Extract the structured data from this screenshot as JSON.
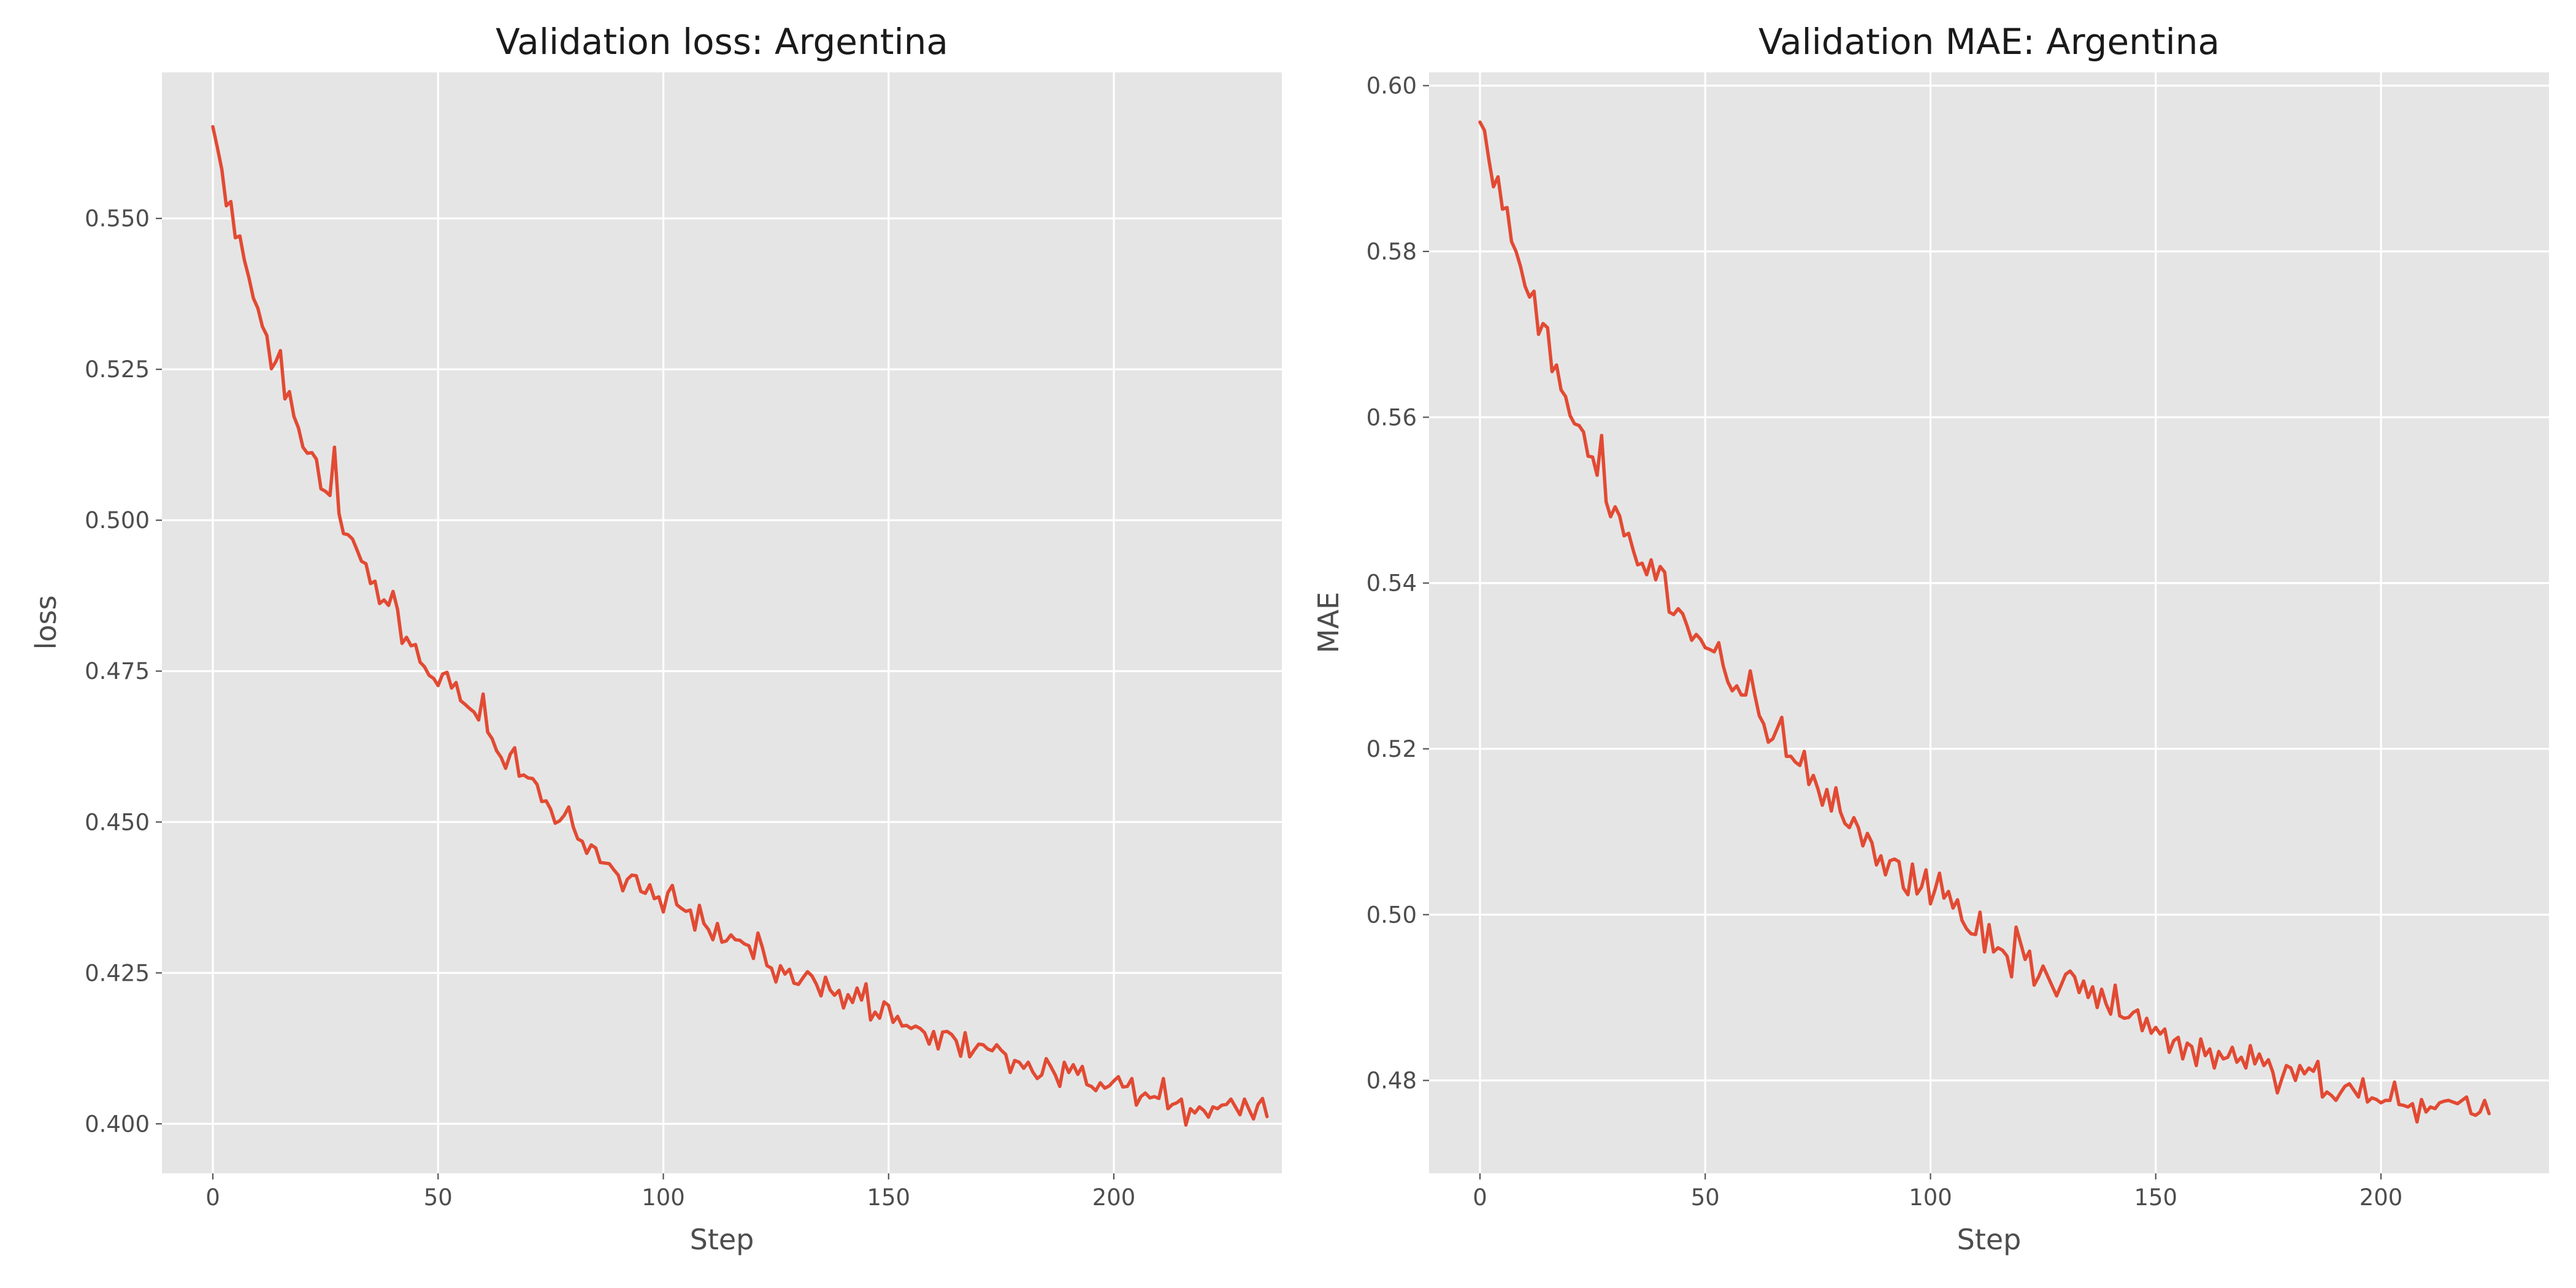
{
  "colors": {
    "panel_background": "#e5e5e5",
    "grid": "#ffffff",
    "series": "#e24a33"
  },
  "chart_data": [
    {
      "type": "line",
      "title": "Validation loss: Argentina",
      "xlabel": "Step",
      "ylabel": "loss",
      "xlim": [
        -11.3,
        237.3
      ],
      "ylim": [
        0.3918,
        0.5742
      ],
      "xticks": [
        0,
        50,
        100,
        150,
        200
      ],
      "xtick_labels": [
        "0",
        "50",
        "100",
        "150",
        "200"
      ],
      "yticks": [
        0.4,
        0.425,
        0.45,
        0.475,
        0.5,
        0.525,
        0.55
      ],
      "ytick_labels": [
        "0.400",
        "0.425",
        "0.450",
        "0.475",
        "0.500",
        "0.525",
        "0.550"
      ],
      "grid": true,
      "series": [
        {
          "x_start": 0,
          "x_step": 1,
          "values": [
            0.5652,
            0.5618,
            0.5581,
            0.5521,
            0.5528,
            0.5468,
            0.5471,
            0.5431,
            0.5402,
            0.5368,
            0.5351,
            0.5321,
            0.5306,
            0.5251,
            0.5263,
            0.5281,
            0.5201,
            0.5213,
            0.5172,
            0.5153,
            0.5121,
            0.5111,
            0.5112,
            0.5101,
            0.5052,
            0.5048,
            0.5041,
            0.5121,
            0.5011,
            0.4978,
            0.4976,
            0.4969,
            0.4951,
            0.4932,
            0.4928,
            0.4895,
            0.4899,
            0.4862,
            0.4868,
            0.4859,
            0.4882,
            0.4852,
            0.4796,
            0.4806,
            0.4792,
            0.4794,
            0.4765,
            0.4757,
            0.4743,
            0.4738,
            0.4726,
            0.4745,
            0.4748,
            0.4722,
            0.4731,
            0.4701,
            0.4695,
            0.4688,
            0.4682,
            0.4669,
            0.4712,
            0.4649,
            0.4638,
            0.4618,
            0.4607,
            0.4589,
            0.4612,
            0.4623,
            0.4576,
            0.4578,
            0.4573,
            0.4572,
            0.4562,
            0.4534,
            0.4535,
            0.4521,
            0.4498,
            0.4502,
            0.4511,
            0.4525,
            0.4492,
            0.4472,
            0.4468,
            0.4448,
            0.4462,
            0.4457,
            0.4433,
            0.4432,
            0.4431,
            0.4421,
            0.4412,
            0.4386,
            0.4405,
            0.4412,
            0.4411,
            0.4385,
            0.4382,
            0.4396,
            0.4373,
            0.4376,
            0.4351,
            0.4383,
            0.4395,
            0.4363,
            0.4357,
            0.4352,
            0.4354,
            0.4321,
            0.4362,
            0.4332,
            0.4322,
            0.4305,
            0.4332,
            0.4301,
            0.4303,
            0.4313,
            0.4305,
            0.4304,
            0.4298,
            0.4295,
            0.4274,
            0.4316,
            0.4292,
            0.4262,
            0.4258,
            0.4235,
            0.4262,
            0.4248,
            0.4256,
            0.4233,
            0.4231,
            0.4242,
            0.4252,
            0.4245,
            0.4231,
            0.4212,
            0.4243,
            0.4222,
            0.4213,
            0.4221,
            0.4192,
            0.4214,
            0.4201,
            0.4225,
            0.4205,
            0.4232,
            0.4172,
            0.4185,
            0.4175,
            0.4202,
            0.4196,
            0.4168,
            0.4178,
            0.4162,
            0.4163,
            0.4158,
            0.4162,
            0.4158,
            0.4151,
            0.4132,
            0.4153,
            0.4124,
            0.4152,
            0.4153,
            0.4148,
            0.4138,
            0.4112,
            0.4151,
            0.4111,
            0.4122,
            0.4132,
            0.4131,
            0.4124,
            0.4121,
            0.4131,
            0.4122,
            0.4115,
            0.4085,
            0.4105,
            0.4102,
            0.4092,
            0.4102,
            0.4086,
            0.4075,
            0.4081,
            0.4108,
            0.4095,
            0.4081,
            0.4062,
            0.4102,
            0.4085,
            0.4098,
            0.4082,
            0.4095,
            0.4065,
            0.4062,
            0.4055,
            0.4068,
            0.4059,
            0.4063,
            0.4071,
            0.4078,
            0.4061,
            0.4062,
            0.4075,
            0.4031,
            0.4045,
            0.4051,
            0.4043,
            0.4045,
            0.4042,
            0.4075,
            0.4025,
            0.4032,
            0.4035,
            0.4041,
            0.3998,
            0.4025,
            0.4018,
            0.4028,
            0.4022,
            0.4011,
            0.4028,
            0.4025,
            0.4031,
            0.4032,
            0.4041,
            0.4028,
            0.4015,
            0.4041,
            0.4024,
            0.4008,
            0.4032,
            0.4042,
            0.4012
          ]
        }
      ]
    },
    {
      "type": "line",
      "title": "Validation MAE: Argentina",
      "xlabel": "Step",
      "ylabel": "MAE",
      "xlim": [
        -11.3,
        237.3
      ],
      "ylim": [
        0.4688,
        0.6016
      ],
      "xticks": [
        0,
        50,
        100,
        150,
        200
      ],
      "xtick_labels": [
        "0",
        "50",
        "100",
        "150",
        "200"
      ],
      "yticks": [
        0.48,
        0.5,
        0.52,
        0.54,
        0.56,
        0.58,
        0.6
      ],
      "ytick_labels": [
        "0.48",
        "0.50",
        "0.52",
        "0.54",
        "0.56",
        "0.58",
        "0.60"
      ],
      "grid": true,
      "series": [
        {
          "x_start": 0,
          "x_step": 1,
          "values": [
            0.5956,
            0.5946,
            0.591,
            0.5878,
            0.589,
            0.5851,
            0.5853,
            0.5812,
            0.58,
            0.5782,
            0.5758,
            0.5745,
            0.5752,
            0.57,
            0.5713,
            0.5708,
            0.5655,
            0.5663,
            0.5633,
            0.5625,
            0.5602,
            0.5592,
            0.559,
            0.5582,
            0.5553,
            0.5552,
            0.553,
            0.5578,
            0.5498,
            0.548,
            0.5492,
            0.5481,
            0.5457,
            0.546,
            0.544,
            0.5422,
            0.5424,
            0.541,
            0.5428,
            0.5404,
            0.542,
            0.5413,
            0.5365,
            0.5362,
            0.5369,
            0.5363,
            0.5348,
            0.5331,
            0.5338,
            0.5332,
            0.5322,
            0.532,
            0.5317,
            0.5328,
            0.53,
            0.5281,
            0.527,
            0.5276,
            0.5265,
            0.5265,
            0.5294,
            0.5265,
            0.524,
            0.523,
            0.5208,
            0.5212,
            0.5225,
            0.5238,
            0.5191,
            0.5191,
            0.5184,
            0.518,
            0.5197,
            0.5157,
            0.5168,
            0.5152,
            0.5132,
            0.5151,
            0.5125,
            0.5153,
            0.5124,
            0.511,
            0.5105,
            0.5117,
            0.5105,
            0.5083,
            0.5098,
            0.5087,
            0.506,
            0.5071,
            0.5048,
            0.5065,
            0.5067,
            0.5064,
            0.5032,
            0.5024,
            0.5061,
            0.5025,
            0.5033,
            0.5054,
            0.5013,
            0.503,
            0.505,
            0.502,
            0.5028,
            0.5008,
            0.5018,
            0.4993,
            0.4983,
            0.4977,
            0.4976,
            0.5003,
            0.4955,
            0.4988,
            0.4955,
            0.496,
            0.4957,
            0.495,
            0.4925,
            0.4985,
            0.4966,
            0.4946,
            0.4956,
            0.4915,
            0.4925,
            0.4938,
            0.4926,
            0.4914,
            0.4902,
            0.4915,
            0.4928,
            0.4932,
            0.4925,
            0.4906,
            0.492,
            0.49,
            0.4913,
            0.4888,
            0.491,
            0.4892,
            0.488,
            0.4915,
            0.4878,
            0.4875,
            0.4876,
            0.4882,
            0.4885,
            0.486,
            0.4875,
            0.4857,
            0.4864,
            0.4856,
            0.4862,
            0.4834,
            0.4848,
            0.4852,
            0.4826,
            0.4845,
            0.4841,
            0.4818,
            0.485,
            0.483,
            0.4838,
            0.4815,
            0.4835,
            0.4826,
            0.4828,
            0.484,
            0.4822,
            0.4828,
            0.4815,
            0.4842,
            0.482,
            0.4832,
            0.4818,
            0.4825,
            0.481,
            0.4785,
            0.4802,
            0.4818,
            0.4815,
            0.48,
            0.4818,
            0.4808,
            0.4815,
            0.4811,
            0.4823,
            0.478,
            0.4786,
            0.4782,
            0.4776,
            0.4785,
            0.4793,
            0.4796,
            0.4788,
            0.478,
            0.4802,
            0.4774,
            0.4779,
            0.4777,
            0.4773,
            0.4776,
            0.4776,
            0.4798,
            0.4771,
            0.477,
            0.4768,
            0.4772,
            0.475,
            0.4777,
            0.4762,
            0.4768,
            0.4766,
            0.4773,
            0.4775,
            0.4776,
            0.4774,
            0.4772,
            0.4776,
            0.478,
            0.476,
            0.4758,
            0.4762,
            0.4776,
            0.476
          ]
        }
      ]
    }
  ]
}
